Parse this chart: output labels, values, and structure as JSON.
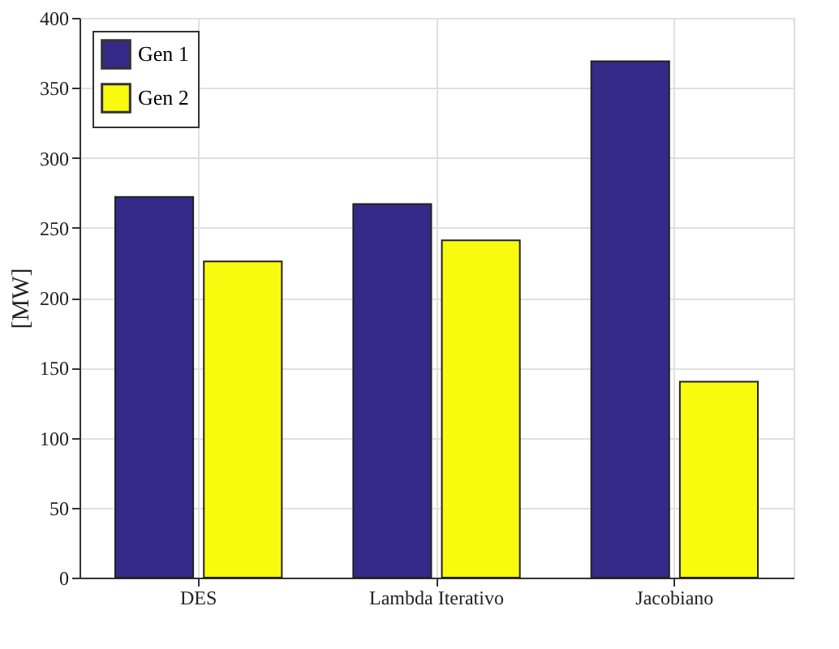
{
  "chart_data": {
    "type": "bar",
    "ylabel": "[MW]",
    "categories": [
      "DES",
      "Lambda Iterativo",
      "Jacobiano"
    ],
    "series": [
      {
        "name": "Gen 1",
        "color": "#352a87",
        "values": [
          272,
          267,
          369
        ]
      },
      {
        "name": "Gen 2",
        "color": "#f9fb0e",
        "values": [
          226,
          241,
          140
        ]
      }
    ],
    "ylim": [
      0,
      400
    ],
    "yticks": [
      0,
      50,
      100,
      150,
      200,
      250,
      300,
      350,
      400
    ],
    "grid": true,
    "legend": "top left"
  }
}
